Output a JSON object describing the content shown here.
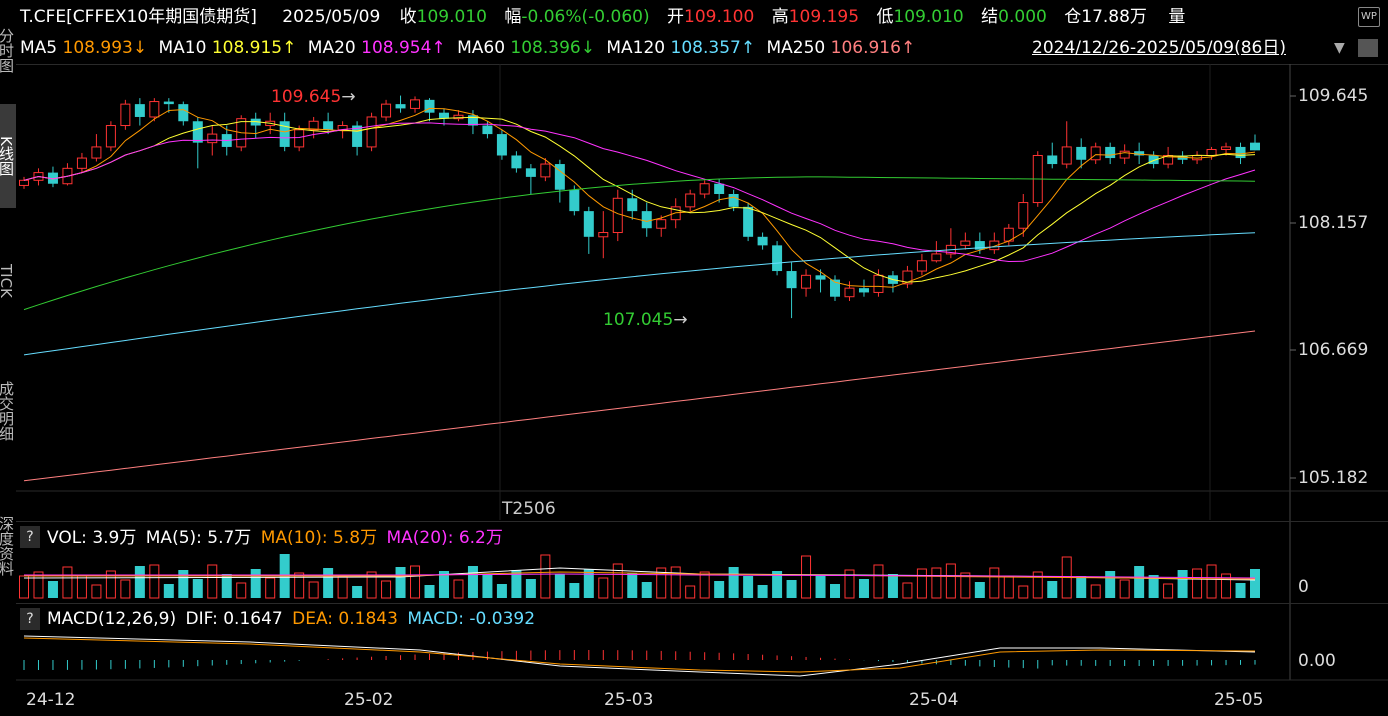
{
  "header": {
    "symbol": "T.CFE[CFFEX10年期国债期货]",
    "date": "2025/05/09",
    "close_label": "收",
    "close_value": "109.010",
    "change_label": "幅",
    "change_value": "-0.06%(-0.060)",
    "open_label": "开",
    "open_value": "109.100",
    "high_label": "高",
    "high_value": "109.195",
    "low_label": "低",
    "low_value": "109.010",
    "settle_label": "结",
    "settle_value": "0.000",
    "oi_label": "仓",
    "oi_value": "17.88万",
    "vol_label": "量",
    "logo_text": "WP"
  },
  "ma_bar": {
    "items": [
      {
        "label": "MA5",
        "value": "108.993↓",
        "color": "#ff9900"
      },
      {
        "label": "MA10",
        "value": "108.915↑",
        "color": "#ffff33"
      },
      {
        "label": "MA20",
        "value": "108.954↑",
        "color": "#ff33ff"
      },
      {
        "label": "MA60",
        "value": "108.396↓",
        "color": "#33cc33"
      },
      {
        "label": "MA120",
        "value": "108.357↑",
        "color": "#66ddff"
      },
      {
        "label": "MA250",
        "value": "106.916↑",
        "color": "#ff8080"
      }
    ],
    "range": "2024/12/26-2025/05/09(86日)"
  },
  "left_tabs": [
    "分时图",
    "K线图",
    "TICK",
    "成交明细",
    "深度资料"
  ],
  "price_axis": [
    "109.645",
    "108.157",
    "106.669",
    "105.182"
  ],
  "annotations": {
    "high": "109.645",
    "low": "107.045"
  },
  "contract_label": "T2506",
  "volume_panel": {
    "q": "?",
    "vol": "VOL: 3.9万",
    "ma5": "MA(5): 5.7万",
    "ma10": "MA(10): 5.8万",
    "ma20": "MA(20): 6.2万",
    "axis": "0"
  },
  "macd_panel": {
    "q": "?",
    "title": "MACD(12,26,9)",
    "dif": "DIF: 0.1647",
    "dea": "DEA: 0.1843",
    "macd": "MACD: -0.0392",
    "axis": "0.00"
  },
  "x_axis": [
    "24-12",
    "25-02",
    "25-03",
    "25-04",
    "25-05"
  ],
  "colors": {
    "up": "#ff3333",
    "down": "#33cccc",
    "bg": "#000000"
  }
}
